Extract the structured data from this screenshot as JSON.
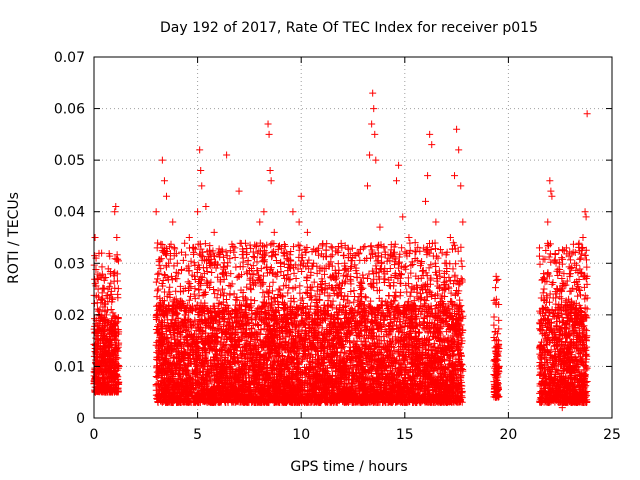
{
  "chart_data": {
    "type": "scatter",
    "title": "Day 192 of 2017, Rate Of TEC Index for receiver p015",
    "xlabel": "GPS time / hours",
    "ylabel": "ROTI / TECUs",
    "xlim": [
      0,
      25
    ],
    "ylim": [
      0,
      0.07
    ],
    "x_ticks": [
      "0",
      "5",
      "10",
      "15",
      "20",
      "25"
    ],
    "y_ticks": [
      "0",
      "0.01",
      "0.02",
      "0.03",
      "0.04",
      "0.05",
      "0.06",
      "0.07"
    ],
    "grid": true,
    "marker": "plus",
    "color": "#ff0000",
    "series": [
      {
        "points": [
          [
            0.05,
            0.035
          ],
          [
            0.1,
            0.031
          ],
          [
            0.15,
            0.027
          ],
          [
            0.2,
            0.025
          ],
          [
            0.25,
            0.018
          ],
          [
            0.3,
            0.014
          ],
          [
            0.35,
            0.012
          ],
          [
            0.4,
            0.01
          ],
          [
            0.5,
            0.011
          ],
          [
            0.55,
            0.009
          ],
          [
            0.6,
            0.02
          ],
          [
            0.7,
            0.013
          ],
          [
            0.8,
            0.015
          ],
          [
            0.9,
            0.023
          ],
          [
            1.0,
            0.04
          ],
          [
            1.05,
            0.041
          ],
          [
            1.1,
            0.035
          ],
          [
            0.95,
            0.028
          ],
          [
            1.0,
            0.018
          ],
          [
            1.1,
            0.01
          ],
          [
            1.15,
            0.008
          ],
          [
            0.85,
            0.007
          ],
          [
            0.6,
            0.006
          ],
          [
            0.3,
            0.007
          ],
          [
            3.0,
            0.04
          ],
          [
            3.05,
            0.033
          ],
          [
            3.1,
            0.025
          ],
          [
            3.2,
            0.018
          ],
          [
            3.3,
            0.05
          ],
          [
            3.4,
            0.046
          ],
          [
            3.5,
            0.043
          ],
          [
            3.6,
            0.03
          ],
          [
            3.8,
            0.038
          ],
          [
            4.0,
            0.027
          ],
          [
            4.2,
            0.022
          ],
          [
            4.4,
            0.02
          ],
          [
            4.6,
            0.035
          ],
          [
            4.8,
            0.033
          ],
          [
            5.0,
            0.04
          ],
          [
            5.1,
            0.052
          ],
          [
            5.15,
            0.048
          ],
          [
            5.2,
            0.045
          ],
          [
            5.4,
            0.041
          ],
          [
            5.6,
            0.03
          ],
          [
            5.8,
            0.036
          ],
          [
            6.0,
            0.032
          ],
          [
            6.2,
            0.025
          ],
          [
            6.4,
            0.051
          ],
          [
            6.6,
            0.028
          ],
          [
            6.8,
            0.033
          ],
          [
            7.0,
            0.044
          ],
          [
            7.2,
            0.031
          ],
          [
            7.4,
            0.028
          ],
          [
            7.6,
            0.029
          ],
          [
            7.8,
            0.026
          ],
          [
            8.0,
            0.038
          ],
          [
            8.2,
            0.04
          ],
          [
            8.4,
            0.057
          ],
          [
            8.45,
            0.055
          ],
          [
            8.5,
            0.048
          ],
          [
            8.55,
            0.046
          ],
          [
            8.7,
            0.036
          ],
          [
            9.0,
            0.03
          ],
          [
            9.3,
            0.032
          ],
          [
            9.6,
            0.04
          ],
          [
            9.9,
            0.038
          ],
          [
            10.0,
            0.043
          ],
          [
            10.3,
            0.036
          ],
          [
            10.6,
            0.03
          ],
          [
            10.9,
            0.024
          ],
          [
            11.2,
            0.029
          ],
          [
            11.5,
            0.033
          ],
          [
            11.8,
            0.028
          ],
          [
            12.1,
            0.03
          ],
          [
            12.4,
            0.026
          ],
          [
            12.7,
            0.032
          ],
          [
            13.0,
            0.033
          ],
          [
            13.2,
            0.045
          ],
          [
            13.3,
            0.051
          ],
          [
            13.4,
            0.057
          ],
          [
            13.45,
            0.063
          ],
          [
            13.5,
            0.06
          ],
          [
            13.55,
            0.055
          ],
          [
            13.6,
            0.05
          ],
          [
            13.8,
            0.037
          ],
          [
            14.0,
            0.033
          ],
          [
            14.3,
            0.029
          ],
          [
            14.6,
            0.046
          ],
          [
            14.7,
            0.049
          ],
          [
            14.9,
            0.039
          ],
          [
            15.2,
            0.035
          ],
          [
            15.5,
            0.034
          ],
          [
            15.8,
            0.03
          ],
          [
            16.0,
            0.042
          ],
          [
            16.1,
            0.047
          ],
          [
            16.2,
            0.055
          ],
          [
            16.3,
            0.053
          ],
          [
            16.5,
            0.038
          ],
          [
            16.8,
            0.032
          ],
          [
            17.0,
            0.03
          ],
          [
            17.2,
            0.035
          ],
          [
            17.4,
            0.047
          ],
          [
            17.5,
            0.056
          ],
          [
            17.6,
            0.052
          ],
          [
            17.7,
            0.045
          ],
          [
            17.8,
            0.038
          ],
          [
            19.3,
            0.018
          ],
          [
            19.35,
            0.015
          ],
          [
            19.4,
            0.013
          ],
          [
            19.45,
            0.009
          ],
          [
            19.5,
            0.006
          ],
          [
            19.4,
            0.005
          ],
          [
            21.5,
            0.033
          ],
          [
            21.7,
            0.028
          ],
          [
            21.9,
            0.038
          ],
          [
            22.0,
            0.046
          ],
          [
            22.05,
            0.044
          ],
          [
            22.1,
            0.043
          ],
          [
            22.3,
            0.03
          ],
          [
            22.5,
            0.025
          ],
          [
            22.8,
            0.033
          ],
          [
            23.0,
            0.028
          ],
          [
            23.2,
            0.03
          ],
          [
            23.4,
            0.025
          ],
          [
            23.6,
            0.035
          ],
          [
            23.7,
            0.04
          ],
          [
            23.75,
            0.039
          ],
          [
            23.8,
            0.059
          ],
          [
            23.5,
            0.028
          ],
          [
            22.6,
            0.002
          ],
          [
            23.0,
            0.004
          ]
        ],
        "bands": [
          {
            "x": [
              0.0,
              1.2
            ],
            "y": [
              0.005,
              0.02
            ]
          },
          {
            "x": [
              3.0,
              17.8
            ],
            "y": [
              0.003,
              0.022
            ]
          },
          {
            "x": [
              19.3,
              19.55
            ],
            "y": [
              0.004,
              0.016
            ]
          },
          {
            "x": [
              21.5,
              23.8
            ],
            "y": [
              0.003,
              0.022
            ]
          }
        ]
      }
    ]
  }
}
